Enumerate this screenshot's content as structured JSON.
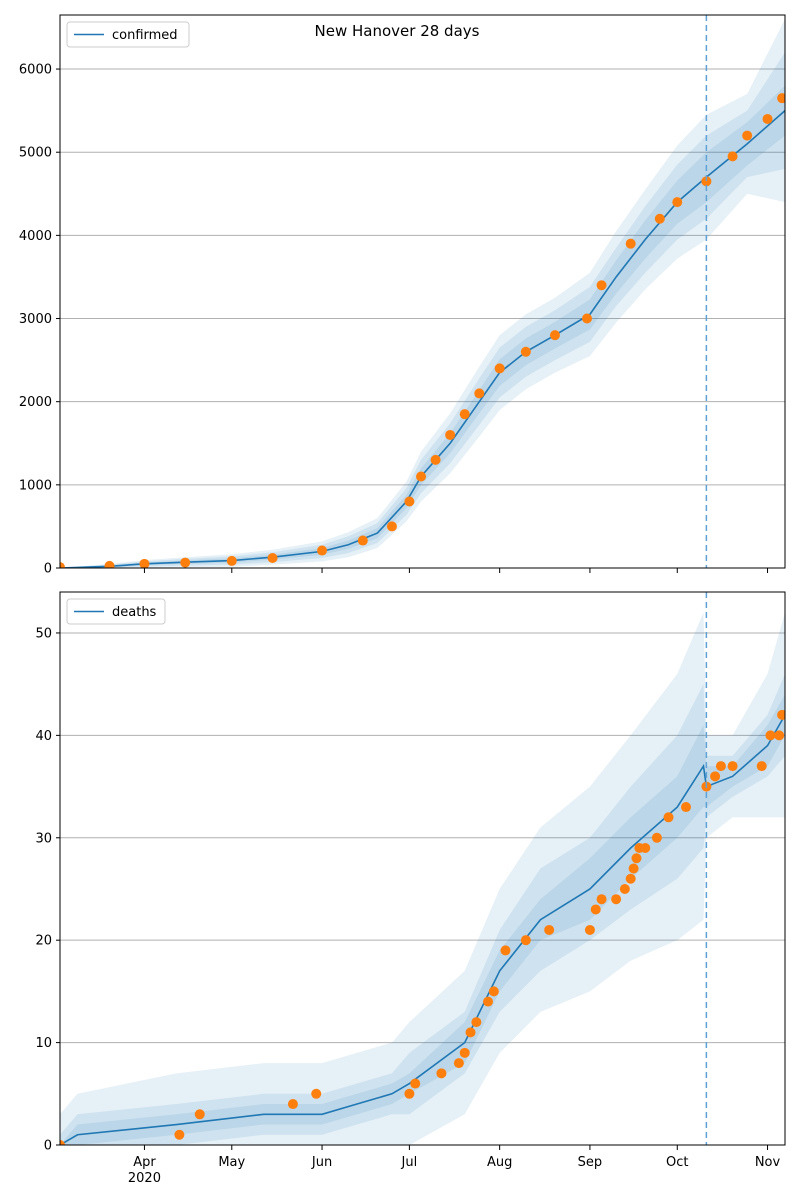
{
  "figure": {
    "title": "New Hanover 28 days",
    "forecast_marker_date": "2020-10-11",
    "colors": {
      "model": "#1f77b4",
      "observed": "#ff7f0e",
      "band": "#1f77b4",
      "grid": "#b0b0b0",
      "marker": "#5fa2d6"
    }
  },
  "x_axis": {
    "range": [
      "2020-03-03",
      "2020-11-07"
    ],
    "ticks": [
      {
        "date": "2020-04-01",
        "label": "Apr",
        "year": "2020"
      },
      {
        "date": "2020-05-01",
        "label": "May",
        "year": ""
      },
      {
        "date": "2020-06-01",
        "label": "Jun",
        "year": ""
      },
      {
        "date": "2020-07-01",
        "label": "Jul",
        "year": ""
      },
      {
        "date": "2020-08-01",
        "label": "Aug",
        "year": ""
      },
      {
        "date": "2020-09-01",
        "label": "Sep",
        "year": ""
      },
      {
        "date": "2020-10-01",
        "label": "Oct",
        "year": ""
      },
      {
        "date": "2020-11-01",
        "label": "Nov",
        "year": ""
      }
    ]
  },
  "chart_data": [
    {
      "type": "line",
      "title": "New Hanover 28 days",
      "legend": "confirmed",
      "legend_position": "top-left",
      "grid": "horizontal",
      "ylim": [
        0,
        6650
      ],
      "yticks": [
        0,
        1000,
        2000,
        3000,
        4000,
        5000,
        6000
      ],
      "model": {
        "name": "confirmed",
        "x": [
          "2020-03-03",
          "2020-03-20",
          "2020-04-01",
          "2020-04-15",
          "2020-05-01",
          "2020-05-15",
          "2020-06-01",
          "2020-06-10",
          "2020-06-20",
          "2020-06-30",
          "2020-07-05",
          "2020-07-15",
          "2020-07-25",
          "2020-08-01",
          "2020-08-10",
          "2020-08-20",
          "2020-09-01",
          "2020-09-10",
          "2020-09-20",
          "2020-10-01",
          "2020-10-11",
          "2020-10-25",
          "2020-11-07"
        ],
        "y": [
          0,
          20,
          50,
          70,
          90,
          130,
          200,
          280,
          420,
          800,
          1100,
          1500,
          2000,
          2350,
          2600,
          2800,
          3050,
          3500,
          3950,
          4400,
          4700,
          5100,
          5500
        ]
      },
      "bands": [
        {
          "level": "50%",
          "half_width": [
            0,
            10,
            15,
            20,
            25,
            30,
            40,
            50,
            60,
            80,
            100,
            120,
            140,
            160,
            160,
            160,
            180,
            200,
            230,
            260,
            300,
            260,
            300
          ]
        },
        {
          "level": "80%",
          "half_width": [
            0,
            20,
            30,
            40,
            50,
            60,
            80,
            100,
            120,
            160,
            200,
            240,
            280,
            300,
            300,
            300,
            330,
            350,
            400,
            450,
            500,
            400,
            700
          ]
        },
        {
          "level": "95%",
          "half_width": [
            0,
            30,
            45,
            60,
            75,
            90,
            120,
            150,
            180,
            240,
            300,
            360,
            420,
            450,
            450,
            450,
            500,
            550,
            600,
            680,
            750,
            600,
            1100
          ]
        }
      ],
      "observed": {
        "x": [
          "2020-03-03",
          "2020-03-20",
          "2020-04-01",
          "2020-04-15",
          "2020-05-01",
          "2020-05-15",
          "2020-06-01",
          "2020-06-15",
          "2020-06-25",
          "2020-07-01",
          "2020-07-05",
          "2020-07-10",
          "2020-07-15",
          "2020-07-20",
          "2020-07-25",
          "2020-08-01",
          "2020-08-10",
          "2020-08-20",
          "2020-08-31",
          "2020-09-05",
          "2020-09-15",
          "2020-09-25",
          "2020-10-01",
          "2020-10-11",
          "2020-10-20",
          "2020-10-25",
          "2020-11-01",
          "2020-11-06"
        ],
        "y": [
          10,
          25,
          50,
          65,
          85,
          120,
          210,
          330,
          500,
          800,
          1100,
          1300,
          1600,
          1850,
          2100,
          2400,
          2600,
          2800,
          3000,
          3400,
          3900,
          4200,
          4400,
          4650,
          4950,
          5200,
          5400,
          5650
        ]
      }
    },
    {
      "type": "line",
      "legend": "deaths",
      "legend_position": "top-left",
      "grid": "horizontal",
      "ylim": [
        0,
        54
      ],
      "yticks": [
        0,
        10,
        20,
        30,
        40,
        50
      ],
      "model": {
        "name": "deaths",
        "x": [
          "2020-03-03",
          "2020-03-09",
          "2020-04-12",
          "2020-05-12",
          "2020-06-01",
          "2020-06-13",
          "2020-06-25",
          "2020-07-01",
          "2020-07-20",
          "2020-08-01",
          "2020-08-15",
          "2020-09-01",
          "2020-09-15",
          "2020-10-01",
          "2020-10-10",
          "2020-10-11",
          "2020-10-20",
          "2020-11-01",
          "2020-11-07"
        ],
        "y": [
          0,
          1,
          2,
          3,
          3,
          4,
          5,
          6,
          10,
          17,
          22,
          25,
          29,
          33,
          37,
          35,
          36,
          39,
          42
        ]
      },
      "bands": [
        {
          "level": "50%",
          "half_width": [
            0,
            1,
            1,
            1,
            1,
            1,
            1,
            1,
            2,
            2,
            2,
            3,
            3,
            3,
            4,
            2,
            1,
            2,
            2
          ]
        },
        {
          "level": "80%",
          "half_width": [
            1,
            2,
            2,
            2,
            2,
            2,
            2,
            3,
            3,
            4,
            5,
            5,
            6,
            7,
            8,
            3,
            2,
            3,
            4
          ]
        },
        {
          "level": "95%",
          "half_width": [
            3,
            4,
            5,
            5,
            5,
            5,
            5,
            6,
            7,
            8,
            9,
            10,
            11,
            13,
            15,
            5,
            4,
            7,
            10
          ]
        }
      ],
      "observed": {
        "x": [
          "2020-03-03",
          "2020-04-13",
          "2020-04-20",
          "2020-05-22",
          "2020-05-30",
          "2020-07-01",
          "2020-07-03",
          "2020-07-12",
          "2020-07-18",
          "2020-07-20",
          "2020-07-22",
          "2020-07-24",
          "2020-07-28",
          "2020-07-30",
          "2020-08-03",
          "2020-08-10",
          "2020-08-18",
          "2020-09-01",
          "2020-09-03",
          "2020-09-05",
          "2020-09-10",
          "2020-09-13",
          "2020-09-15",
          "2020-09-16",
          "2020-09-17",
          "2020-09-18",
          "2020-09-20",
          "2020-09-24",
          "2020-09-28",
          "2020-10-04",
          "2020-10-11",
          "2020-10-14",
          "2020-10-16",
          "2020-10-20",
          "2020-10-30",
          "2020-11-02",
          "2020-11-05",
          "2020-11-06"
        ],
        "y": [
          0,
          1,
          3,
          4,
          5,
          5,
          6,
          7,
          8,
          9,
          11,
          12,
          14,
          15,
          19,
          20,
          21,
          21,
          23,
          24,
          24,
          25,
          26,
          27,
          28,
          29,
          29,
          30,
          32,
          33,
          35,
          36,
          37,
          37,
          37,
          40,
          40,
          42
        ]
      }
    }
  ]
}
